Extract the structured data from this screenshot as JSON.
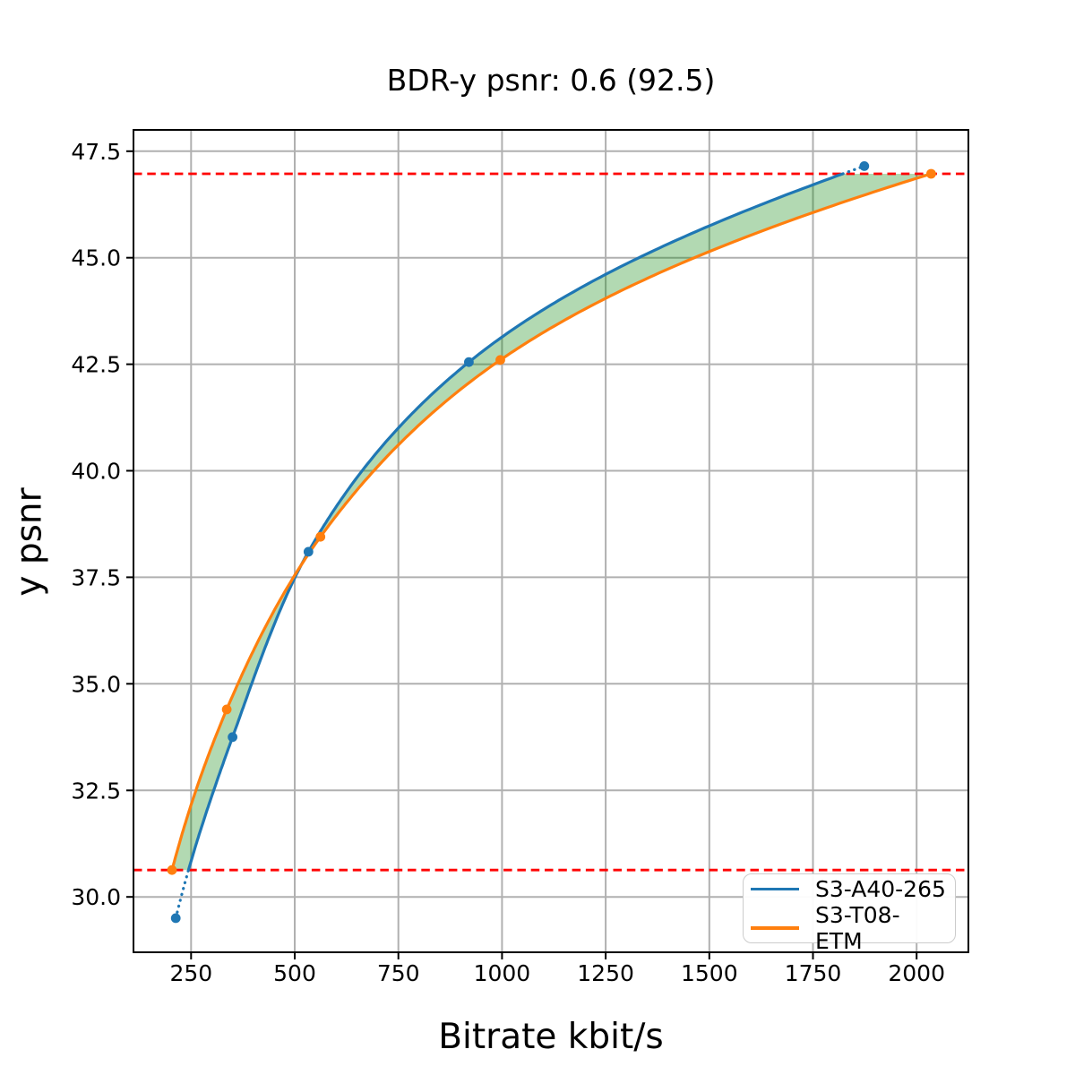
{
  "chart_data": {
    "type": "line",
    "title": "BDR-y psnr: 0.6 (92.5)",
    "xlabel": "Bitrate kbit/s",
    "ylabel": "y psnr",
    "x_range": [
      111,
      2125
    ],
    "y_range": [
      28.7,
      48.0
    ],
    "x_ticks": [
      250,
      500,
      750,
      1000,
      1250,
      1500,
      1750,
      2000
    ],
    "y_ticks": [
      30.0,
      32.5,
      35.0,
      37.5,
      40.0,
      42.5,
      45.0,
      47.5
    ],
    "grid": true,
    "grid_color": "#b0b0b0",
    "spine_color": "#000000",
    "legend_position": "lower right",
    "series": [
      {
        "name": "S3-A40-265",
        "color": "#1f77b4",
        "marker": "circle",
        "points": [
          [
            213,
            29.5
          ],
          [
            350,
            33.75
          ],
          [
            533,
            38.1
          ],
          [
            920,
            42.55
          ],
          [
            1874,
            47.15
          ]
        ]
      },
      {
        "name": "S3-T08-ETM",
        "color": "#ff7f0e",
        "marker": "circle",
        "points": [
          [
            204,
            30.63
          ],
          [
            336,
            34.4
          ],
          [
            562,
            38.45
          ],
          [
            996,
            42.6
          ],
          [
            2035,
            46.97
          ]
        ]
      }
    ],
    "reference_lines": {
      "style": "dashed",
      "color": "#ff0000",
      "values": [
        30.63,
        46.97
      ]
    },
    "fill_between": {
      "color": "#008000",
      "opacity": 0.3
    }
  }
}
